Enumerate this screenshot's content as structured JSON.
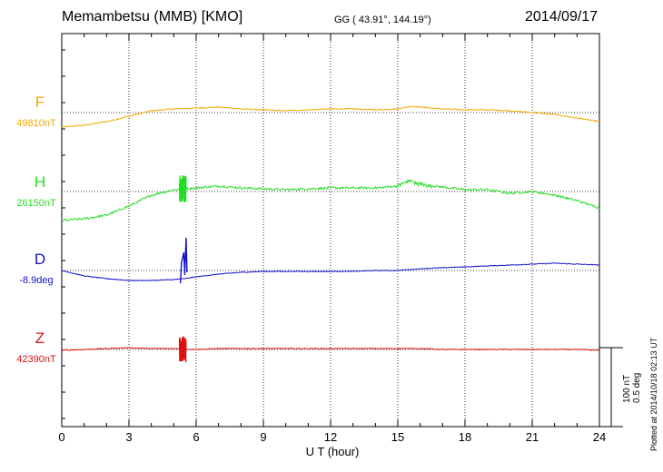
{
  "header": {
    "station": "Memambetsu (MMB)  [KMO]",
    "coords": "GG ( 43.91°, 144.19°)",
    "date": "2014/09/17"
  },
  "footer": {
    "plotted": "Plotted at 2014/10/18 02:13 UT"
  },
  "scale": {
    "line1": "100 nT",
    "line2": "0.5 deg"
  },
  "chart_data": {
    "type": "line",
    "title": "Memambetsu (MMB)  [KMO]",
    "xlabel": "U T (hour)",
    "xlim": [
      0,
      24
    ],
    "xticks": [
      0,
      3,
      6,
      9,
      12,
      15,
      18,
      21,
      24
    ],
    "x_minor_step": 1,
    "grid": "dotted",
    "series": [
      {
        "name": "F",
        "baseline_label": "49810nT",
        "color": "#f2a900",
        "baseline_nT": 49810,
        "points": [
          [
            0,
            -16
          ],
          [
            1,
            -14
          ],
          [
            2,
            -10
          ],
          [
            3,
            -4
          ],
          [
            4,
            2
          ],
          [
            5,
            4
          ],
          [
            6,
            5
          ],
          [
            7,
            6
          ],
          [
            8,
            4
          ],
          [
            9,
            3
          ],
          [
            10,
            2
          ],
          [
            11,
            3
          ],
          [
            12,
            4
          ],
          [
            13,
            4
          ],
          [
            14,
            3
          ],
          [
            15,
            4
          ],
          [
            15.6,
            7
          ],
          [
            16,
            6
          ],
          [
            17,
            4
          ],
          [
            18,
            3
          ],
          [
            19,
            3
          ],
          [
            20,
            2
          ],
          [
            21,
            0
          ],
          [
            22,
            -2
          ],
          [
            23,
            -6
          ],
          [
            24,
            -10
          ]
        ],
        "noise": 0.6
      },
      {
        "name": "H",
        "baseline_label": "26150nT",
        "color": "#22dd22",
        "baseline_nT": 26150,
        "points": [
          [
            0,
            -32
          ],
          [
            1,
            -30
          ],
          [
            2,
            -26
          ],
          [
            3,
            -16
          ],
          [
            4,
            -4
          ],
          [
            5,
            2
          ],
          [
            6,
            4
          ],
          [
            7,
            6
          ],
          [
            8,
            4
          ],
          [
            9,
            3
          ],
          [
            10,
            2
          ],
          [
            11,
            3
          ],
          [
            12,
            4
          ],
          [
            13,
            4
          ],
          [
            14,
            4
          ],
          [
            15,
            6
          ],
          [
            15.5,
            12
          ],
          [
            16,
            8
          ],
          [
            17,
            5
          ],
          [
            18,
            2
          ],
          [
            19,
            2
          ],
          [
            20,
            -2
          ],
          [
            21,
            0
          ],
          [
            22,
            -4
          ],
          [
            23,
            -10
          ],
          [
            24,
            -18
          ]
        ],
        "noise": 1.2
      },
      {
        "name": "D",
        "baseline_label": "-8.9deg",
        "color": "#1111cc",
        "baseline_deg": -8.9,
        "points": [
          [
            0,
            0
          ],
          [
            1,
            -6
          ],
          [
            2,
            -9
          ],
          [
            3,
            -11
          ],
          [
            4,
            -11
          ],
          [
            5,
            -10
          ],
          [
            5.5,
            -9
          ],
          [
            6,
            -7
          ],
          [
            7,
            -4
          ],
          [
            8,
            -2
          ],
          [
            9,
            -1
          ],
          [
            10,
            -1
          ],
          [
            11,
            -1
          ],
          [
            12,
            -1
          ],
          [
            13,
            -1
          ],
          [
            14,
            0
          ],
          [
            15,
            0
          ],
          [
            16,
            2
          ],
          [
            17,
            3
          ],
          [
            18,
            4
          ],
          [
            19,
            5
          ],
          [
            20,
            6
          ],
          [
            21,
            7
          ],
          [
            22,
            8
          ],
          [
            23,
            7
          ],
          [
            24,
            6
          ]
        ],
        "noise": 0.4
      },
      {
        "name": "Z",
        "baseline_label": "42390nT",
        "color": "#dd1111",
        "baseline_nT": 42390,
        "points": [
          [
            0,
            -1
          ],
          [
            1,
            0
          ],
          [
            2,
            1
          ],
          [
            3,
            2
          ],
          [
            4,
            1
          ],
          [
            5,
            1
          ],
          [
            6,
            0
          ],
          [
            7,
            1
          ],
          [
            8,
            1
          ],
          [
            9,
            1
          ],
          [
            10,
            1
          ],
          [
            11,
            1
          ],
          [
            12,
            1
          ],
          [
            13,
            1
          ],
          [
            14,
            1
          ],
          [
            15,
            1
          ],
          [
            16,
            1
          ],
          [
            17,
            0
          ],
          [
            18,
            0
          ],
          [
            19,
            0
          ],
          [
            20,
            0
          ],
          [
            21,
            0
          ],
          [
            22,
            0
          ],
          [
            23,
            0
          ],
          [
            24,
            -1
          ]
        ],
        "noise": 0.5
      }
    ],
    "event": {
      "x_start": 5.25,
      "x_end": 5.55,
      "note": "short-period disturbance visible in H, D and Z"
    }
  }
}
